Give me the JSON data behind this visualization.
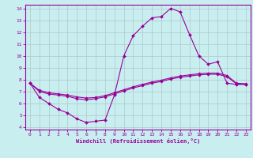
{
  "title": "",
  "xlabel": "Windchill (Refroidissement éolien,°C)",
  "ylabel": "",
  "bg_color": "#c8eef0",
  "line_color": "#990099",
  "grid_color": "#b0c8c8",
  "xlim": [
    -0.5,
    23.5
  ],
  "ylim": [
    3.8,
    14.3
  ],
  "xticks": [
    0,
    1,
    2,
    3,
    4,
    5,
    6,
    7,
    8,
    9,
    10,
    11,
    12,
    13,
    14,
    15,
    16,
    17,
    18,
    19,
    20,
    21,
    22,
    23
  ],
  "yticks": [
    4,
    5,
    6,
    7,
    8,
    9,
    10,
    11,
    12,
    13,
    14
  ],
  "curve1_x": [
    0,
    1,
    2,
    3,
    4,
    5,
    6,
    7,
    8,
    9,
    10,
    11,
    12,
    13,
    14,
    15,
    16,
    17,
    18,
    19,
    20,
    21,
    22,
    23
  ],
  "curve1_y": [
    7.7,
    6.5,
    6.0,
    5.5,
    5.2,
    4.7,
    4.4,
    4.5,
    4.6,
    6.7,
    10.0,
    11.7,
    12.5,
    13.2,
    13.3,
    14.0,
    13.7,
    11.8,
    10.0,
    9.3,
    9.5,
    7.7,
    7.6,
    7.6
  ],
  "curve2_x": [
    0,
    1,
    2,
    3,
    4,
    5,
    6,
    7,
    8,
    9,
    10,
    11,
    12,
    13,
    14,
    15,
    16,
    17,
    18,
    19,
    20,
    21,
    22,
    23
  ],
  "curve2_y": [
    7.7,
    7.1,
    6.9,
    6.8,
    6.7,
    6.55,
    6.45,
    6.5,
    6.65,
    6.9,
    7.15,
    7.4,
    7.6,
    7.8,
    7.95,
    8.15,
    8.3,
    8.4,
    8.5,
    8.55,
    8.55,
    8.35,
    7.7,
    7.65
  ],
  "curve3_x": [
    0,
    1,
    2,
    3,
    4,
    5,
    6,
    7,
    8,
    9,
    10,
    11,
    12,
    13,
    14,
    15,
    16,
    17,
    18,
    19,
    20,
    21,
    22,
    23
  ],
  "curve3_y": [
    7.7,
    7.0,
    6.8,
    6.7,
    6.6,
    6.4,
    6.3,
    6.4,
    6.55,
    6.8,
    7.05,
    7.3,
    7.5,
    7.7,
    7.85,
    8.05,
    8.2,
    8.3,
    8.4,
    8.45,
    8.45,
    8.25,
    7.65,
    7.6
  ]
}
